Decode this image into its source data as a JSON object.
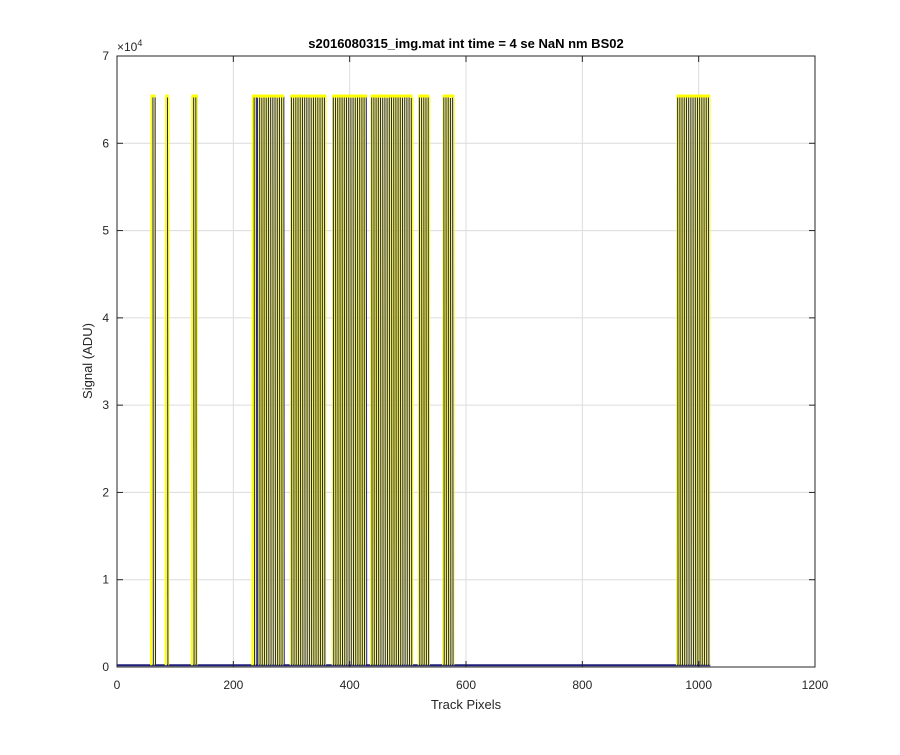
{
  "chart_data": {
    "type": "line",
    "title": "s2016080315_img.mat int time = 4 se  NaN nm BS02",
    "xlabel": "Track Pixels",
    "ylabel": "Signal (ADU)",
    "xlim": [
      0,
      1200
    ],
    "ylim": [
      0,
      70000
    ],
    "y_exponent_label": "×10",
    "y_exponent_power": "4",
    "x_ticks": [
      0,
      200,
      400,
      600,
      800,
      1000,
      1200
    ],
    "x_tick_labels": [
      "0",
      "200",
      "400",
      "600",
      "800",
      "1000",
      "1200"
    ],
    "y_ticks": [
      0,
      10000,
      20000,
      30000,
      40000,
      50000,
      60000,
      70000
    ],
    "y_tick_labels": [
      "0",
      "1",
      "2",
      "3",
      "4",
      "5",
      "6",
      "7"
    ],
    "grid": true,
    "baseline_level": 200,
    "saturation_level": 65535,
    "baseline_range": [
      0,
      1020
    ],
    "saturated_regions": [
      {
        "x_start": 58,
        "x_end": 66,
        "peak": 65535
      },
      {
        "x_start": 83,
        "x_end": 89,
        "peak": 65535
      },
      {
        "x_start": 128,
        "x_end": 139,
        "peak": 65535
      },
      {
        "x_start": 232,
        "x_end": 287,
        "peak": 65535
      },
      {
        "x_start": 298,
        "x_end": 360,
        "peak": 65535
      },
      {
        "x_start": 370,
        "x_end": 430,
        "peak": 65535
      },
      {
        "x_start": 436,
        "x_end": 508,
        "peak": 65535
      },
      {
        "x_start": 518,
        "x_end": 537,
        "peak": 65535
      },
      {
        "x_start": 560,
        "x_end": 580,
        "peak": 65535
      },
      {
        "x_start": 962,
        "x_end": 1020,
        "peak": 65535
      }
    ],
    "series_colors": [
      "#ffff00",
      "#1f1f7a"
    ]
  }
}
